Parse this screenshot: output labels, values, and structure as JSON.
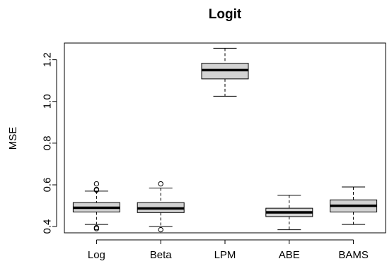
{
  "chart_data": {
    "type": "boxplot",
    "title": "Logit",
    "xlabel": "",
    "ylabel": "MSE",
    "ylim": [
      0.37,
      1.28
    ],
    "yticks": [
      "0.4",
      "0.6",
      "0.8",
      "1.0",
      "1.2"
    ],
    "box_fill": "#d3d3d3",
    "categories": [
      "Log",
      "Beta",
      "LPM",
      "ABE",
      "BAMS"
    ],
    "boxes": [
      {
        "name": "Log",
        "whisker_low": 0.41,
        "q1": 0.47,
        "median": 0.49,
        "q3": 0.515,
        "whisker_high": 0.57,
        "outliers": [
          0.395,
          0.39,
          0.575,
          0.578,
          0.605
        ]
      },
      {
        "name": "Beta",
        "whisker_low": 0.4,
        "q1": 0.467,
        "median": 0.487,
        "q3": 0.515,
        "whisker_high": 0.585,
        "outliers": [
          0.385,
          0.605
        ]
      },
      {
        "name": "LPM",
        "whisker_low": 1.025,
        "q1": 1.108,
        "median": 1.15,
        "q3": 1.183,
        "whisker_high": 1.255,
        "outliers": []
      },
      {
        "name": "ABE",
        "whisker_low": 0.385,
        "q1": 0.448,
        "median": 0.468,
        "q3": 0.488,
        "whisker_high": 0.55,
        "outliers": []
      },
      {
        "name": "BAMS",
        "whisker_low": 0.41,
        "q1": 0.47,
        "median": 0.5,
        "q3": 0.528,
        "whisker_high": 0.59,
        "outliers": []
      }
    ]
  }
}
